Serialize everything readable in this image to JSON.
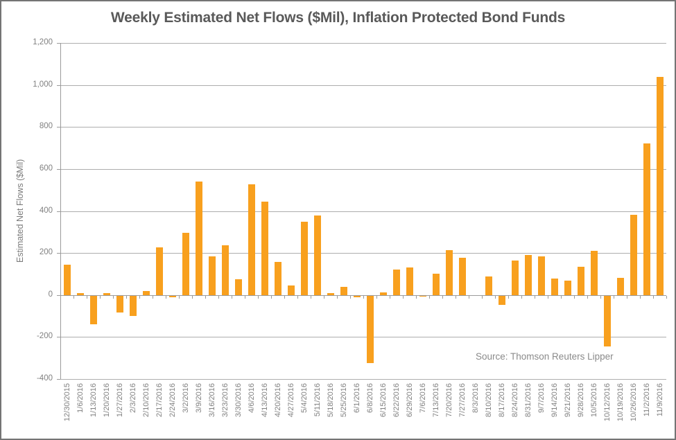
{
  "source_note": "Source: Thomson Reuters Lipper",
  "colors": {
    "bar": "#F8A01E",
    "gridline": "#ADADAD",
    "axis": "#9A9A9A",
    "tick_label": "#808080",
    "title": "#595959",
    "frame_border": "#747474",
    "background": "#FFFFFF"
  },
  "chart_data": {
    "type": "bar",
    "title": "Weekly Estimated Net Flows ($Mil), Inflation Protected Bond Funds",
    "xlabel": "",
    "ylabel": "Estimated Net Flows ($Mil)",
    "ylim": [
      -400,
      1200
    ],
    "ytick_interval": 200,
    "grid": "horizontal",
    "legend": "none",
    "yticks": [
      {
        "value": 1200,
        "label": "1,200"
      },
      {
        "value": 1000,
        "label": "1,000"
      },
      {
        "value": 800,
        "label": "800"
      },
      {
        "value": 600,
        "label": "600"
      },
      {
        "value": 400,
        "label": "400"
      },
      {
        "value": 200,
        "label": "200"
      },
      {
        "value": 0,
        "label": "0"
      },
      {
        "value": -200,
        "label": "-200"
      },
      {
        "value": -400,
        "label": "-400"
      }
    ],
    "categories": [
      "12/30/2015",
      "1/6/2016",
      "1/13/2016",
      "1/20/2016",
      "1/27/2016",
      "2/3/2016",
      "2/10/2016",
      "2/17/2016",
      "2/24/2016",
      "3/2/2016",
      "3/9/2016",
      "3/16/2016",
      "3/23/2016",
      "3/30/2016",
      "4/6/2016",
      "4/13/2016",
      "4/20/2016",
      "4/27/2016",
      "5/4/2016",
      "5/11/2016",
      "5/18/2016",
      "5/25/2016",
      "6/1/2016",
      "6/8/2016",
      "6/15/2016",
      "6/22/2016",
      "6/29/2016",
      "7/6/2016",
      "7/13/2016",
      "7/20/2016",
      "7/27/2016",
      "8/3/2016",
      "8/10/2016",
      "8/17/2016",
      "8/24/2016",
      "8/31/2016",
      "9/7/2016",
      "9/14/2016",
      "9/21/2016",
      "9/28/2016",
      "10/5/2016",
      "10/12/2016",
      "10/19/2016",
      "10/26/2016",
      "11/2/2016",
      "11/9/2016"
    ],
    "values": [
      145,
      8,
      -135,
      8,
      -80,
      -95,
      20,
      226,
      -8,
      296,
      540,
      183,
      237,
      75,
      527,
      445,
      158,
      47,
      349,
      378,
      8,
      38,
      -8,
      -322,
      13,
      122,
      130,
      -5,
      100,
      212,
      176,
      0,
      88,
      -44,
      165,
      191,
      185,
      79,
      68,
      136,
      210,
      -243,
      82,
      382,
      723,
      1040
    ]
  }
}
